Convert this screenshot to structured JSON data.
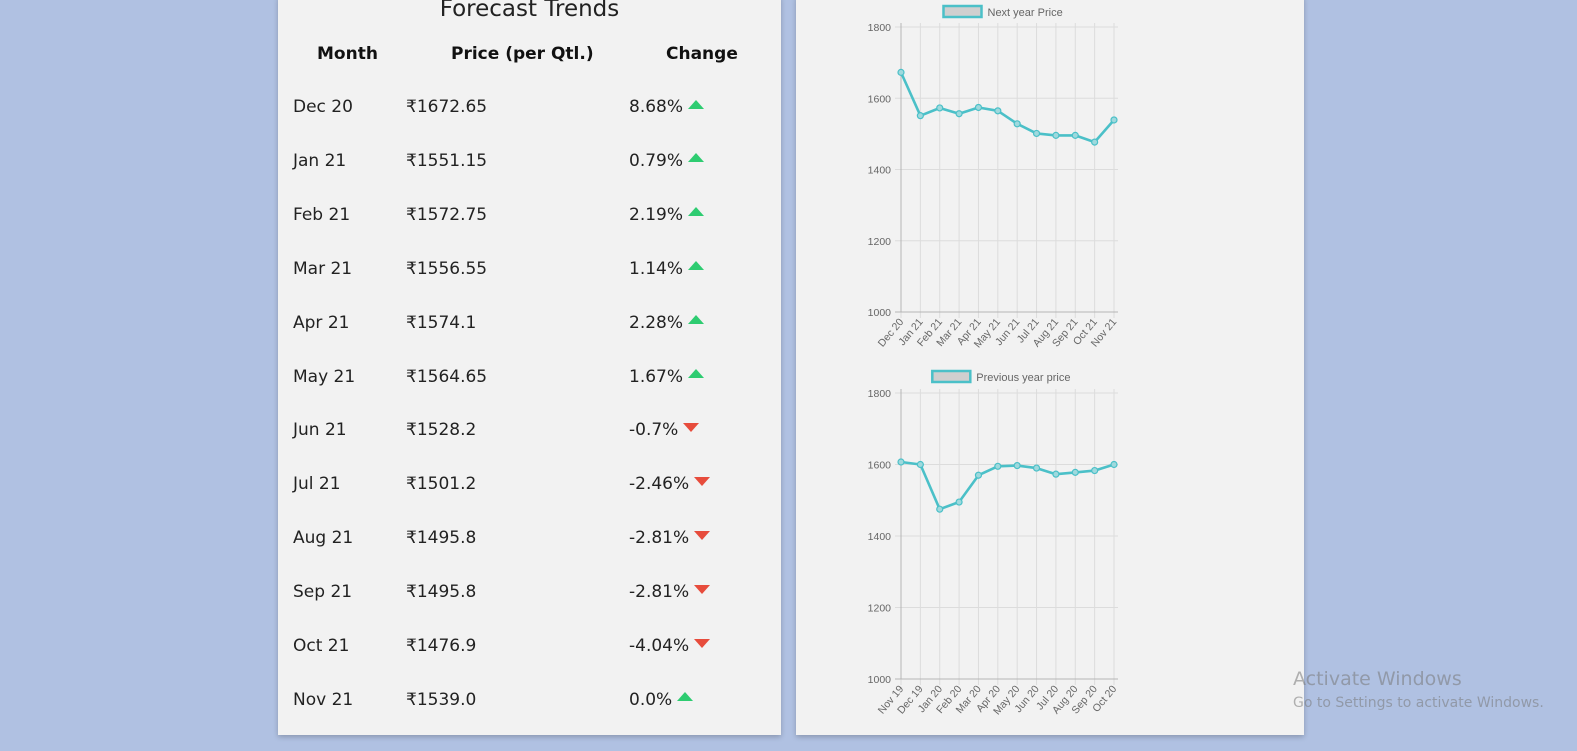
{
  "forecast": {
    "title": "Forecast Trends",
    "headers": {
      "month": "Month",
      "price": "Price (per Qtl.)",
      "change": "Change"
    },
    "rows": [
      {
        "month": "Dec 20",
        "price": "₹1672.65",
        "change": "8.68%",
        "direction": "up"
      },
      {
        "month": "Jan 21",
        "price": "₹1551.15",
        "change": "0.79%",
        "direction": "up"
      },
      {
        "month": "Feb 21",
        "price": "₹1572.75",
        "change": "2.19%",
        "direction": "up"
      },
      {
        "month": "Mar 21",
        "price": "₹1556.55",
        "change": "1.14%",
        "direction": "up"
      },
      {
        "month": "Apr 21",
        "price": "₹1574.1",
        "change": "2.28%",
        "direction": "up"
      },
      {
        "month": "May 21",
        "price": "₹1564.65",
        "change": "1.67%",
        "direction": "up"
      },
      {
        "month": "Jun 21",
        "price": "₹1528.2",
        "change": "-0.7%",
        "direction": "down"
      },
      {
        "month": "Jul 21",
        "price": "₹1501.2",
        "change": "-2.46%",
        "direction": "down"
      },
      {
        "month": "Aug 21",
        "price": "₹1495.8",
        "change": "-2.81%",
        "direction": "down"
      },
      {
        "month": "Sep 21",
        "price": "₹1495.8",
        "change": "-2.81%",
        "direction": "down"
      },
      {
        "month": "Oct 21",
        "price": "₹1476.9",
        "change": "-4.04%",
        "direction": "down"
      },
      {
        "month": "Nov 21",
        "price": "₹1539.0",
        "change": "0.0%",
        "direction": "up"
      }
    ]
  },
  "colors": {
    "up": "#2ecc71",
    "down": "#e74c3c",
    "series": "#4bc0c8",
    "legend_fill": "#cfcfcf"
  },
  "icons": {
    "up": "triangle-up-icon",
    "down": "triangle-down-icon"
  },
  "chart_data": [
    {
      "type": "line",
      "legend": "Next year Price",
      "legend_position": "top",
      "grid": true,
      "ylim": [
        1000,
        1800
      ],
      "yticks": [
        1000,
        1200,
        1400,
        1600,
        1800
      ],
      "categories": [
        "Dec 20",
        "Jan 21",
        "Feb 21",
        "Mar 21",
        "Apr 21",
        "May 21",
        "Jun 21",
        "Jul 21",
        "Aug 21",
        "Sep 21",
        "Oct 21",
        "Nov 21"
      ],
      "series": [
        {
          "name": "Next year Price",
          "values": [
            1672.65,
            1551.15,
            1572.75,
            1556.55,
            1574.1,
            1564.65,
            1528.2,
            1501.2,
            1495.8,
            1495.8,
            1476.9,
            1539.0
          ]
        }
      ]
    },
    {
      "type": "line",
      "legend": "Previous year price",
      "legend_position": "top",
      "grid": true,
      "ylim": [
        1000,
        1800
      ],
      "yticks": [
        1000,
        1200,
        1400,
        1600,
        1800
      ],
      "categories": [
        "Nov 19",
        "Dec 19",
        "Jan 20",
        "Feb 20",
        "Mar 20",
        "Apr 20",
        "May 20",
        "Jun 20",
        "Jul 20",
        "Aug 20",
        "Sep 20",
        "Oct 20"
      ],
      "series": [
        {
          "name": "Previous year price",
          "values": [
            1607,
            1600,
            1475,
            1495,
            1570,
            1595,
            1597,
            1590,
            1573,
            1578,
            1583,
            1600
          ]
        }
      ]
    }
  ],
  "watermark": {
    "title": "Activate Windows",
    "subtitle": "Go to Settings to activate Windows."
  }
}
